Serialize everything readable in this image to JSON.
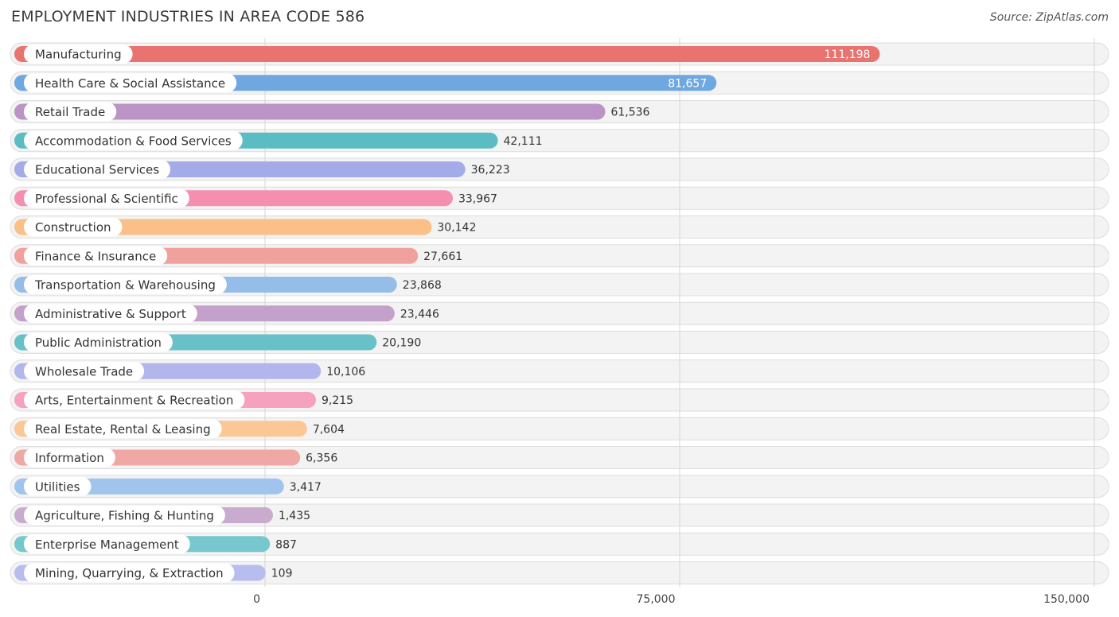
{
  "header": {
    "title": "EMPLOYMENT INDUSTRIES IN AREA CODE 586",
    "source": "Source: ZipAtlas.com"
  },
  "chart_data": {
    "type": "bar",
    "orientation": "horizontal",
    "title": "EMPLOYMENT INDUSTRIES IN AREA CODE 586",
    "xlabel": "",
    "ylabel": "",
    "xlim": [
      0,
      150000
    ],
    "ticks": [
      0,
      75000,
      150000
    ],
    "tick_labels": [
      "0",
      "75,000",
      "150,000"
    ],
    "grid": true,
    "categories": [
      "Manufacturing",
      "Health Care & Social Assistance",
      "Retail Trade",
      "Accommodation & Food Services",
      "Educational Services",
      "Professional & Scientific",
      "Construction",
      "Finance & Insurance",
      "Transportation & Warehousing",
      "Administrative & Support",
      "Public Administration",
      "Wholesale Trade",
      "Arts, Entertainment & Recreation",
      "Real Estate, Rental & Leasing",
      "Information",
      "Utilities",
      "Agriculture, Fishing & Hunting",
      "Enterprise Management",
      "Mining, Quarrying, & Extraction"
    ],
    "values": [
      111198,
      81657,
      61536,
      42111,
      36223,
      33967,
      30142,
      27661,
      23868,
      23446,
      20190,
      10106,
      9215,
      7604,
      6356,
      3417,
      1435,
      887,
      109
    ],
    "value_labels": [
      "111,198",
      "81,657",
      "61,536",
      "42,111",
      "36,223",
      "33,967",
      "30,142",
      "27,661",
      "23,868",
      "23,446",
      "20,190",
      "10,106",
      "9,215",
      "7,604",
      "6,356",
      "3,417",
      "1,435",
      "887",
      "109"
    ],
    "colors": [
      "#e8736f",
      "#6fa8e0",
      "#bb93c4",
      "#5bbcc4",
      "#a3ace8",
      "#f58fb0",
      "#fbbf88",
      "#f0a09d",
      "#94bde8",
      "#c4a1cb",
      "#67c1c7",
      "#b1b7ec",
      "#f6a1bd",
      "#fbc796",
      "#f0a8a5",
      "#a0c4ec",
      "#c9abd0",
      "#77c7cf",
      "#b7bdef"
    ]
  }
}
